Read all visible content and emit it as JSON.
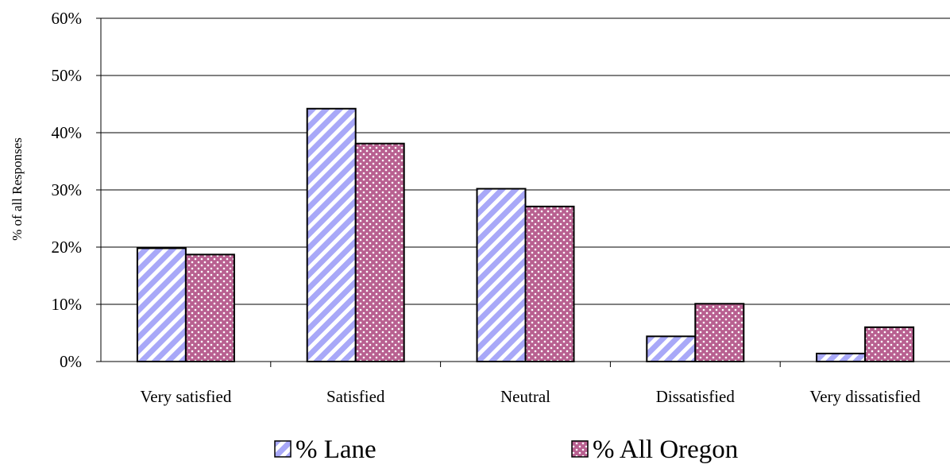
{
  "chart_data": {
    "type": "bar",
    "ylabel": "% of all Responses",
    "xlabel": "",
    "categories": [
      "Very satisfied",
      "Satisfied",
      "Neutral",
      "Dissatisfied",
      "Very dissatisfied"
    ],
    "series": [
      {
        "name": "% Lane",
        "values": [
          19.8,
          44.2,
          30.2,
          4.4,
          1.4
        ],
        "color": "#a8a8f8",
        "pattern": "diagonal-stripes"
      },
      {
        "name": "% All Oregon",
        "values": [
          18.7,
          38.1,
          27.1,
          10.1,
          6.0
        ],
        "color": "#b86090",
        "pattern": "dotted"
      }
    ],
    "ylim": [
      0,
      60
    ],
    "yticks": [
      0,
      10,
      20,
      30,
      40,
      50,
      60
    ],
    "ytick_labels": [
      "0%",
      "10%",
      "20%",
      "30%",
      "40%",
      "50%",
      "60%"
    ],
    "grid": true,
    "legend_position": "bottom"
  }
}
